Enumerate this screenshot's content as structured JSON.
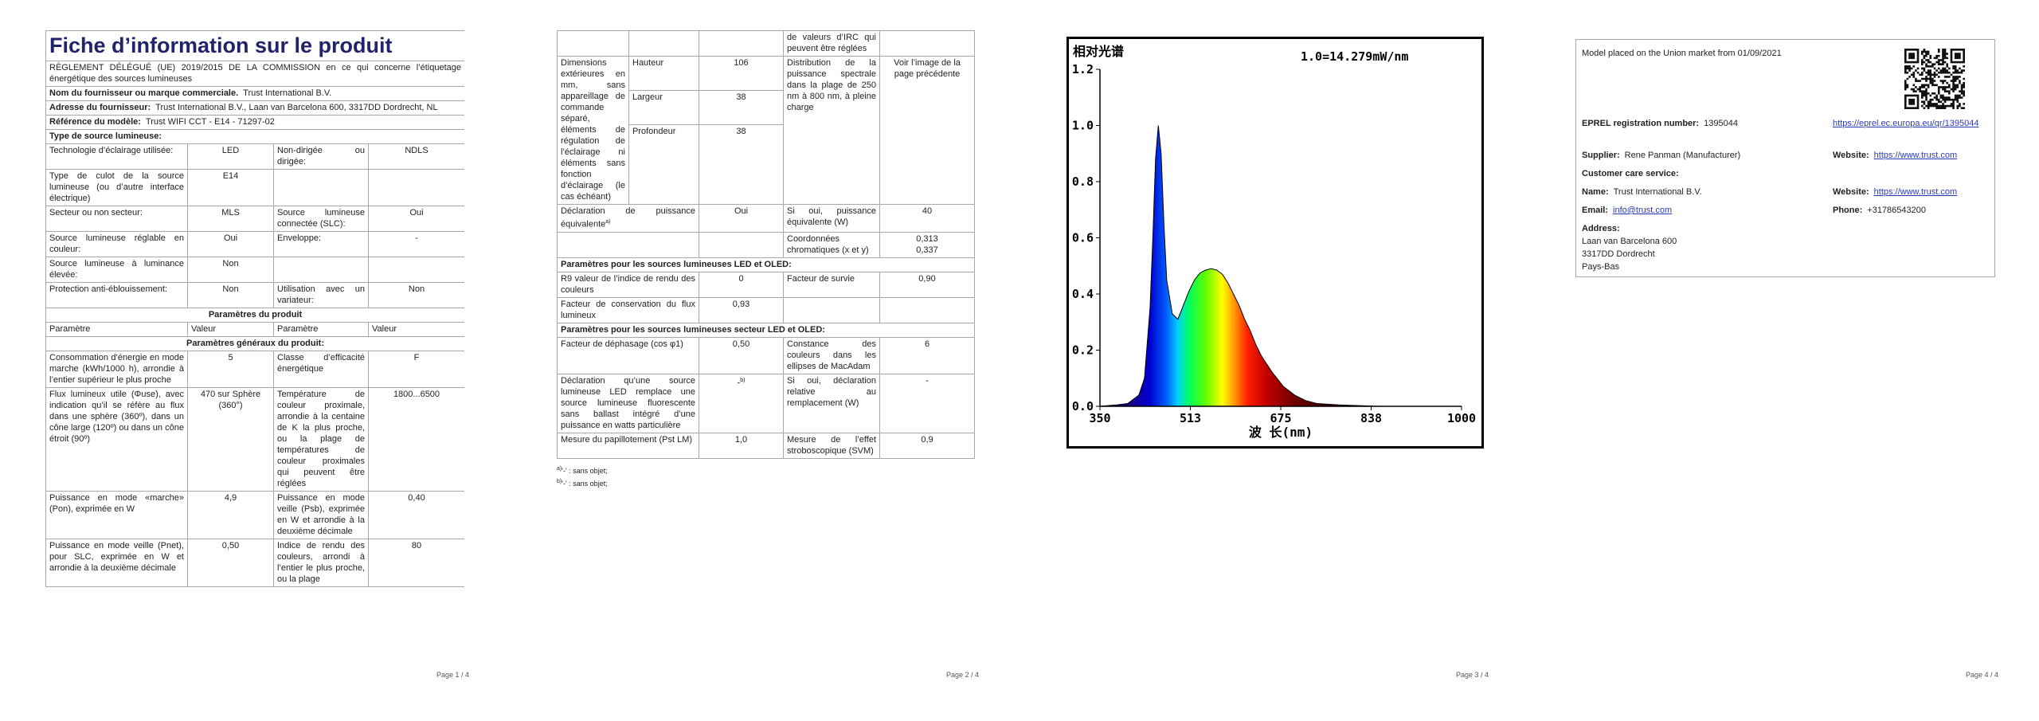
{
  "page1": {
    "title": "Fiche d’information sur le produit",
    "regulation": "RÈGLEMENT DÉLÉGUÉ (UE) 2019/2015 DE LA COMMISSION en ce qui concerne l’étiquetage énergétique des sources lumineuses",
    "supplier": {
      "label": "Nom du fournisseur ou marque commerciale.",
      "value": "Trust International B.V."
    },
    "address": {
      "label": "Adresse du fournisseur:",
      "value": "Trust International B.V., Laan van Barcelona 600, 3317DD Dordrecht, NL"
    },
    "model": {
      "label": "Référence du modèle:",
      "value": "Trust WIFI CCT - E14 - 71297-02"
    },
    "source_type_heading": "Type de source lumineuse:",
    "source_rows": [
      [
        "Technologie d’éclairage utilisée:",
        "LED",
        "Non-dirigée ou dirigée:",
        "NDLS"
      ],
      [
        "Type de culot de la source lumineuse (ou d’autre interface électrique)",
        "E14"
      ],
      [
        "Secteur ou non secteur:",
        "MLS",
        "Source lumineuse connectée (SLC):",
        "Oui"
      ],
      [
        "Source lumineuse réglable en couleur:",
        "Oui",
        "Enveloppe:",
        "-"
      ],
      [
        "Source lumineuse à luminance élevée:",
        "Non"
      ],
      [
        "Protection anti-éblouissement:",
        "Non",
        "Utilisation avec un variateur:",
        "Non"
      ]
    ],
    "params_heading": "Paramètres du produit",
    "params_header": [
      "Paramètre",
      "Valeur",
      "Paramètre",
      "Valeur"
    ],
    "general_heading": "Paramètres généraux du produit:",
    "general_rows": [
      [
        "Consommation d’énergie en mode marche (kWh/1000 h), arrondie à l’entier supérieur le plus proche",
        "5",
        "Classe d’efficacité énergétique",
        "F"
      ],
      [
        "Flux lumineux utile (Φuse), avec indication qu’il se réfère au flux dans une sphère (360º), dans un cône large (120º) ou dans un cône étroit (90º)",
        "470 sur Sphère (360°)",
        "Température de couleur proximale, arrondie à la centaine de K la plus proche, ou la plage de températures de couleur proximales qui peuvent être réglées",
        "1800...6500"
      ],
      [
        "Puissance en mode «marche» (Pon), exprimée en W",
        "4,9",
        "Puissance en mode veille (Psb), exprimée en W et arrondie à la deuxième décimale",
        "0,40"
      ],
      [
        "Puissance en mode veille (Pnet), pour SLC, exprimée en W et arrondie à la deuxième décimale",
        "0,50",
        "Indice de rendu des couleurs, arrondi à l’entier le plus proche, ou la plage",
        "80"
      ]
    ],
    "footer": "Page 1 / 4"
  },
  "page2": {
    "continued": "de valeurs d’IRC qui peuvent être réglées",
    "dimensions_label": "Dimensions extérieures en mm, sans appareillage de commande séparé, éléments de régulation de l’éclairage ni éléments sans fonction d’éclairage (le cas échéant)",
    "dimensions": [
      [
        "Hauteur",
        "106"
      ],
      [
        "Largeur",
        "38"
      ],
      [
        "Profondeur",
        "38"
      ]
    ],
    "spectral_label": "Distribution de la puissance spectrale dans la plage de 250 nm à 800 nm, à pleine charge",
    "spectral_value": "Voir l’image de la page précédente",
    "equivalent_row": [
      {
        "text": "Déclaration de puissance équivalente",
        "sup": "a)"
      },
      "Oui",
      "Si oui, puissance équivalente (W)",
      "40"
    ],
    "chroma_label": "Coordonnées chromatiques (x et y)",
    "chroma_values": [
      "0,313",
      "0,337"
    ],
    "led_heading": "Paramètres pour les sources lumineuses LED et OLED:",
    "led_rows": [
      [
        "R9 valeur de l’indice de rendu des couleurs",
        "0",
        "Facteur de survie",
        "0,90"
      ],
      [
        "Facteur de conservation du flux lumineux",
        "0,93"
      ]
    ],
    "mains_heading": "Paramètres pour les sources lumineuses secteur LED et OLED:",
    "mains_rows": [
      [
        "Facteur de déphasage (cos φ1)",
        "0,50",
        "Constance des couleurs dans les ellipses de MacAdam",
        "6"
      ],
      [
        "Déclaration qu’une source lumineuse LED remplace une source lumineuse fluorescente sans ballast intégré d’une puissance en watts particulière",
        {
          "text": "-",
          "sup": "b)"
        },
        "Si oui, déclaration relative au remplacement (W)",
        "-"
      ],
      [
        "Mesure du papillotement (Pst LM)",
        "1,0",
        "Mesure de l’effet stroboscopique (SVM)",
        "0,9"
      ]
    ],
    "footnotes": [
      {
        "sup": "a)",
        "text": "'-' : sans objet;"
      },
      {
        "sup": "b)",
        "text": "'-' : sans objet;"
      }
    ],
    "footer": "Page 2 / 4"
  },
  "chart_data": {
    "type": "area",
    "title": "相对光谱",
    "annotation": "1.0=14.279mW/nm",
    "x_label": "波 长(nm)",
    "xlim": [
      350,
      1000
    ],
    "ylim": [
      0,
      1.2
    ],
    "xticks": [
      350,
      {
        "value": 512.5,
        "label": "513"
      },
      675,
      {
        "value": 837.5,
        "label": "838"
      },
      1000
    ],
    "yticks": [
      {
        "value": 0,
        "label": "0.0"
      },
      0.2,
      0.4,
      0.6,
      0.8,
      {
        "value": 1,
        "label": "1.0"
      },
      1.2
    ],
    "x": [
      350,
      380,
      400,
      420,
      430,
      440,
      445,
      450,
      455,
      460,
      465,
      470,
      480,
      490,
      500,
      510,
      520,
      530,
      540,
      550,
      560,
      570,
      580,
      590,
      600,
      610,
      620,
      630,
      640,
      650,
      660,
      680,
      700,
      720,
      740,
      780,
      850,
      1000
    ],
    "values": [
      0,
      0.005,
      0.01,
      0.04,
      0.1,
      0.35,
      0.6,
      0.88,
      1.0,
      0.9,
      0.65,
      0.45,
      0.33,
      0.31,
      0.36,
      0.41,
      0.45,
      0.475,
      0.485,
      0.49,
      0.485,
      0.47,
      0.44,
      0.4,
      0.36,
      0.31,
      0.27,
      0.22,
      0.18,
      0.15,
      0.12,
      0.07,
      0.04,
      0.02,
      0.01,
      0.005,
      0,
      0
    ]
  },
  "page3": {
    "footer": "Page 3 / 4"
  },
  "page4": {
    "market": "Model placed on the Union market from 01/09/2021",
    "eprel": {
      "label": "EPREL registration number:",
      "value": "1395044"
    },
    "eprel_link": "https://eprel.ec.europa.eu/qr/1395044",
    "supplier": {
      "label": "Supplier:",
      "value": "Rene Panman (Manufacturer)"
    },
    "website1": {
      "label": "Website:",
      "value": "https://www.trust.com"
    },
    "customer_care": "Customer care service:",
    "name": {
      "label": "Name:",
      "value": "Trust International B.V."
    },
    "website2": {
      "label": "Website:",
      "value": "https://www.trust.com"
    },
    "email": {
      "label": "Email:",
      "value": "info@trust.com"
    },
    "phone": {
      "label": "Phone:",
      "value": "+31786543200"
    },
    "address_label": "Address:",
    "address_lines": [
      "Laan van Barcelona 600",
      "3317DD Dordrecht",
      "Pays-Bas"
    ],
    "footer": "Page 4 / 4"
  }
}
